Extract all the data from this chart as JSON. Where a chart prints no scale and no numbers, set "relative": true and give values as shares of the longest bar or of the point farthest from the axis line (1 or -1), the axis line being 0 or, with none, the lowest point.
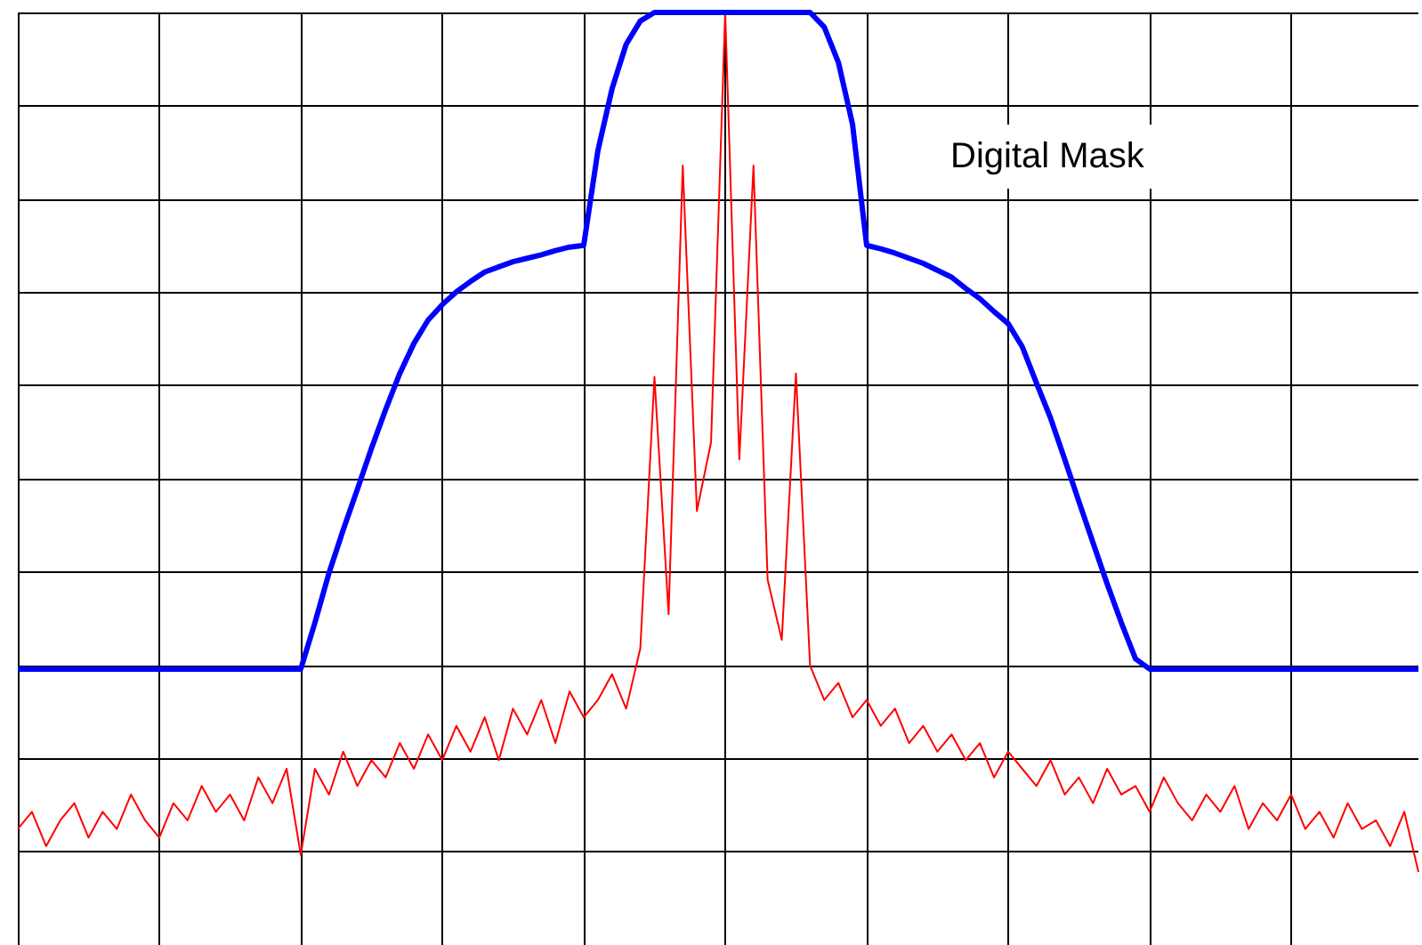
{
  "chart_data": {
    "type": "line",
    "relative": true,
    "grid": true,
    "line_style": "solid",
    "annotations": [
      "Digital Mask"
    ],
    "categories": [
      null,
      null,
      null,
      null,
      null,
      null,
      null,
      null,
      null,
      null,
      null,
      null,
      null,
      null,
      null,
      null,
      null,
      null,
      null,
      null,
      null,
      null,
      null,
      null,
      null,
      null,
      null,
      null,
      null,
      null,
      null,
      null,
      null,
      null,
      null,
      null,
      null,
      null,
      null,
      null,
      null,
      null,
      null,
      null,
      null,
      null,
      null,
      null,
      null,
      null,
      null,
      null,
      null,
      null,
      null,
      null,
      null,
      null,
      null,
      null,
      null,
      null,
      null,
      null,
      null,
      null,
      null,
      null,
      null,
      null,
      null,
      null,
      null,
      null,
      null,
      null,
      null,
      null,
      null,
      null,
      null,
      null,
      null,
      null,
      null,
      null,
      null,
      null,
      null,
      null,
      null,
      null,
      null,
      null,
      null,
      null,
      null,
      null,
      null,
      null
    ],
    "series": [
      {
        "color": "#ff0000",
        "values": [
          0.05,
          0.07,
          0.03,
          0.06,
          0.08,
          0.04,
          0.07,
          0.05,
          0.09,
          0.06,
          0.04,
          0.08,
          0.06,
          0.1,
          0.07,
          0.09,
          0.06,
          0.11,
          0.08,
          0.12,
          0.02,
          0.12,
          0.09,
          0.14,
          0.1,
          0.13,
          0.11,
          0.15,
          0.12,
          0.16,
          0.13,
          0.17,
          0.14,
          0.18,
          0.13,
          0.19,
          0.16,
          0.2,
          0.15,
          0.21,
          0.18,
          0.2,
          0.23,
          0.19,
          0.26,
          0.576,
          0.3,
          0.822,
          0.42,
          0.5,
          1,
          0.48,
          0.822,
          0.34,
          0.27,
          0.58,
          0.24,
          0.2,
          0.22,
          0.18,
          0.2,
          0.17,
          0.19,
          0.15,
          0.17,
          0.14,
          0.16,
          0.13,
          0.15,
          0.11,
          0.14,
          0.12,
          0.1,
          0.13,
          0.09,
          0.11,
          0.08,
          0.12,
          0.09,
          0.1,
          0.07,
          0.11,
          0.08,
          0.06,
          0.09,
          0.07,
          0.1,
          0.05,
          0.08,
          0.06,
          0.09,
          0.05,
          0.07,
          0.04,
          0.08,
          0.05,
          0.06,
          0.03,
          0.07,
          0
        ]
      },
      {
        "color": "#0000ff",
        "values": [
          0.236,
          0.236,
          0.236,
          0.236,
          0.236,
          0.236,
          0.236,
          0.236,
          0.236,
          0.236,
          0.236,
          0.236,
          0.236,
          0.236,
          0.236,
          0.236,
          0.236,
          0.236,
          0.236,
          0.236,
          0.236,
          0.29,
          0.348,
          0.398,
          0.445,
          0.493,
          0.538,
          0.58,
          0.615,
          0.642,
          0.66,
          0.675,
          0.687,
          0.698,
          0.704,
          0.71,
          0.714,
          0.718,
          0.723,
          0.727,
          0.729,
          0.839,
          0.911,
          0.963,
          0.99,
          1,
          1,
          1,
          1,
          1,
          1,
          1,
          1,
          1,
          1,
          1,
          1,
          0.983,
          0.942,
          0.87,
          0.729,
          0.725,
          0.72,
          0.714,
          0.708,
          0.7,
          0.692,
          0.679,
          0.667,
          0.652,
          0.638,
          0.611,
          0.569,
          0.528,
          0.48,
          0.431,
          0.383,
          0.335,
          0.29,
          0.248,
          0.236,
          0.236,
          0.236,
          0.236,
          0.236,
          0.236,
          0.236,
          0.236,
          0.236,
          0.236,
          0.236,
          0.236,
          0.236,
          0.236,
          0.236,
          0.236,
          0.236,
          0.236,
          0.236,
          0.236
        ]
      }
    ]
  }
}
